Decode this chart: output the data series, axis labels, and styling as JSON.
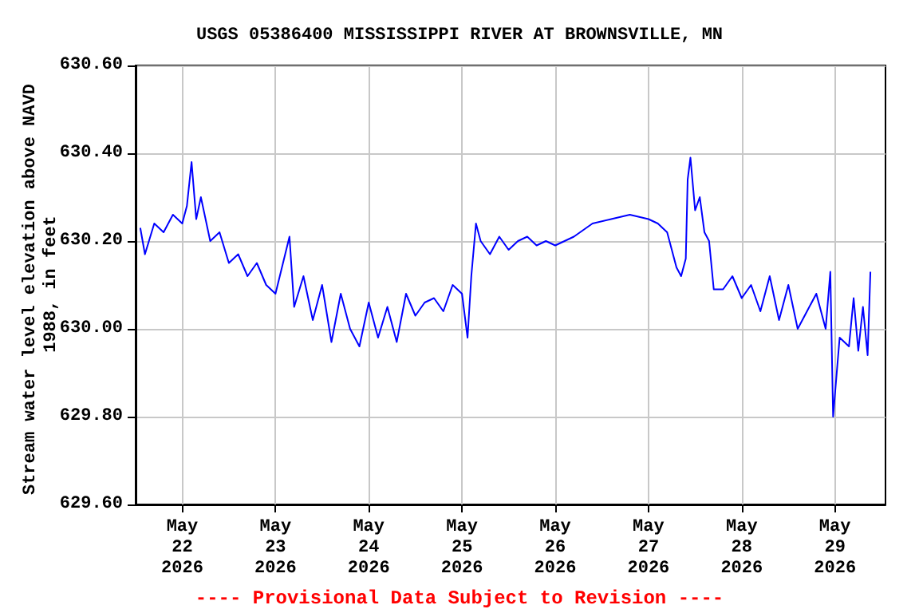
{
  "chart_data": {
    "type": "line",
    "title": "USGS 05386400 MISSISSIPPI RIVER AT BROWNSVILLE, MN",
    "ylabel": "Stream water level elevation above NAVD 1988, in feet",
    "annotations": [
      "---- Provisional Data Subject to Revision ----"
    ],
    "x": [
      "2026-05-21T13:12",
      "2026-05-21T14:24",
      "2026-05-21T16:48",
      "2026-05-21T19:12",
      "2026-05-21T21:36",
      "2026-05-22T00:00",
      "2026-05-22T01:12",
      "2026-05-22T02:24",
      "2026-05-22T03:36",
      "2026-05-22T04:48",
      "2026-05-22T07:12",
      "2026-05-22T09:36",
      "2026-05-22T12:00",
      "2026-05-22T14:24",
      "2026-05-22T16:48",
      "2026-05-22T19:12",
      "2026-05-22T21:36",
      "2026-05-23T00:00",
      "2026-05-23T03:36",
      "2026-05-23T04:48",
      "2026-05-23T07:12",
      "2026-05-23T09:36",
      "2026-05-23T12:00",
      "2026-05-23T14:24",
      "2026-05-23T16:48",
      "2026-05-23T19:12",
      "2026-05-23T21:36",
      "2026-05-24T00:00",
      "2026-05-24T02:24",
      "2026-05-24T04:48",
      "2026-05-24T07:12",
      "2026-05-24T09:36",
      "2026-05-24T12:00",
      "2026-05-24T14:24",
      "2026-05-24T16:48",
      "2026-05-24T19:12",
      "2026-05-24T21:36",
      "2026-05-25T00:00",
      "2026-05-25T01:26",
      "2026-05-25T02:24",
      "2026-05-25T03:36",
      "2026-05-25T04:48",
      "2026-05-25T07:12",
      "2026-05-25T09:36",
      "2026-05-25T12:00",
      "2026-05-25T14:24",
      "2026-05-25T16:48",
      "2026-05-25T19:12",
      "2026-05-25T21:36",
      "2026-05-26T00:00",
      "2026-05-26T04:48",
      "2026-05-26T09:36",
      "2026-05-26T14:24",
      "2026-05-26T19:12",
      "2026-05-27T00:00",
      "2026-05-27T02:24",
      "2026-05-27T04:48",
      "2026-05-27T06:00",
      "2026-05-27T07:12",
      "2026-05-27T08:24",
      "2026-05-27T09:36",
      "2026-05-27T10:05",
      "2026-05-27T10:48",
      "2026-05-27T12:00",
      "2026-05-27T13:12",
      "2026-05-27T14:24",
      "2026-05-27T15:36",
      "2026-05-27T16:48",
      "2026-05-27T19:12",
      "2026-05-27T21:36",
      "2026-05-28T00:00",
      "2026-05-28T02:24",
      "2026-05-28T04:48",
      "2026-05-28T07:12",
      "2026-05-28T09:36",
      "2026-05-28T12:00",
      "2026-05-28T14:24",
      "2026-05-28T16:48",
      "2026-05-28T19:12",
      "2026-05-28T21:36",
      "2026-05-28T22:48",
      "2026-05-28T23:31",
      "2026-05-29T01:12",
      "2026-05-29T03:36",
      "2026-05-29T04:48",
      "2026-05-29T06:00",
      "2026-05-29T07:12",
      "2026-05-29T08:24",
      "2026-05-29T09:07"
    ],
    "series": [
      {
        "color": "#0000ff",
        "values": [
          630.23,
          630.17,
          630.24,
          630.22,
          630.26,
          630.24,
          630.28,
          630.38,
          630.25,
          630.3,
          630.2,
          630.22,
          630.15,
          630.17,
          630.12,
          630.15,
          630.1,
          630.08,
          630.21,
          630.05,
          630.12,
          630.02,
          630.1,
          629.97,
          630.08,
          630,
          629.96,
          630.06,
          629.98,
          630.05,
          629.97,
          630.08,
          630.03,
          630.06,
          630.07,
          630.04,
          630.1,
          630.08,
          629.98,
          630.12,
          630.24,
          630.2,
          630.17,
          630.21,
          630.18,
          630.2,
          630.21,
          630.19,
          630.2,
          630.19,
          630.21,
          630.24,
          630.25,
          630.26,
          630.25,
          630.24,
          630.22,
          630.18,
          630.14,
          630.12,
          630.16,
          630.34,
          630.39,
          630.27,
          630.3,
          630.22,
          630.2,
          630.09,
          630.09,
          630.12,
          630.07,
          630.1,
          630.04,
          630.12,
          630.02,
          630.1,
          630,
          630.04,
          630.08,
          630,
          630.13,
          629.8,
          629.98,
          629.96,
          630.07,
          629.95,
          630.05,
          629.94,
          630.13
        ]
      }
    ],
    "xlim": [
      "2026-05-21T12:00",
      "2026-05-29T13:00"
    ],
    "xticks": [
      {
        "value": "2026-05-22T00:00",
        "label": "May\n22\n2026"
      },
      {
        "value": "2026-05-23T00:00",
        "label": "May\n23\n2026"
      },
      {
        "value": "2026-05-24T00:00",
        "label": "May\n24\n2026"
      },
      {
        "value": "2026-05-25T00:00",
        "label": "May\n25\n2026"
      },
      {
        "value": "2026-05-26T00:00",
        "label": "May\n26\n2026"
      },
      {
        "value": "2026-05-27T00:00",
        "label": "May\n27\n2026"
      },
      {
        "value": "2026-05-28T00:00",
        "label": "May\n28\n2026"
      },
      {
        "value": "2026-05-29T00:00",
        "label": "May\n29\n2026"
      }
    ],
    "ylim": [
      629.6,
      630.6
    ],
    "yticks": [
      {
        "value": 629.6,
        "label": "629.60"
      },
      {
        "value": 629.8,
        "label": "629.80"
      },
      {
        "value": 630,
        "label": "630.00"
      },
      {
        "value": 630.2,
        "label": "630.20"
      },
      {
        "value": 630.4,
        "label": "630.40"
      },
      {
        "value": 630.6,
        "label": "630.60"
      }
    ],
    "grid": true
  }
}
